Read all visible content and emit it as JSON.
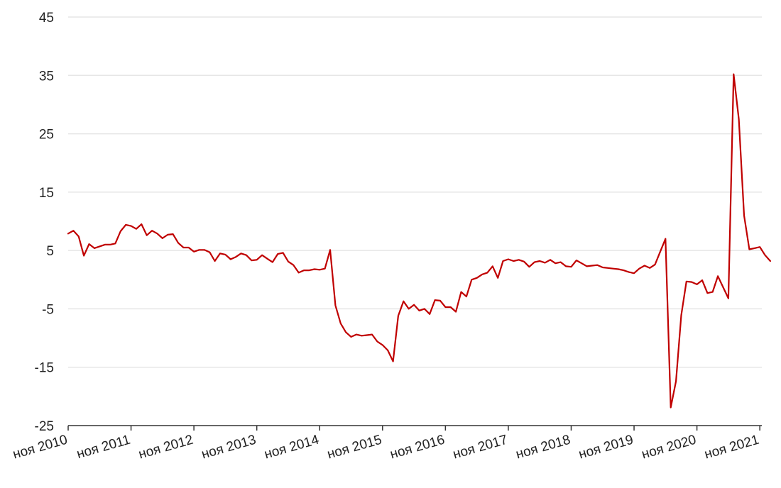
{
  "chart_data": {
    "type": "line",
    "title": "",
    "xlabel": "",
    "ylabel": "",
    "ylim": [
      -25,
      45
    ],
    "yticks": [
      -25,
      -15,
      -5,
      5,
      15,
      25,
      35,
      45
    ],
    "grid": true,
    "legend": "none",
    "colors": {
      "line": "#c00000",
      "grid": "#e6e6e6",
      "axis": "#333333"
    },
    "x_tick_labels": [
      "ноя 2010",
      "ноя 2011",
      "ноя 2012",
      "ноя 2013",
      "ноя 2014",
      "ноя 2015",
      "ноя 2016",
      "ноя 2017",
      "ноя 2018",
      "ноя 2019",
      "ноя 2020",
      "ноя 2021"
    ],
    "x_start_month": "2010-11",
    "series": [
      {
        "name": "",
        "x_step": "1 month",
        "values": [
          7.9,
          8.4,
          7.4,
          4.1,
          6.1,
          5.4,
          5.7,
          6.0,
          6.0,
          6.2,
          8.3,
          9.4,
          9.2,
          8.7,
          9.5,
          7.6,
          8.4,
          7.9,
          7.1,
          7.7,
          7.8,
          6.3,
          5.5,
          5.5,
          4.8,
          5.1,
          5.1,
          4.7,
          3.2,
          4.5,
          4.3,
          3.5,
          3.9,
          4.5,
          4.2,
          3.3,
          3.4,
          4.2,
          3.6,
          3.0,
          4.4,
          4.6,
          3.1,
          2.5,
          1.2,
          1.6,
          1.6,
          1.8,
          1.7,
          1.9,
          5.1,
          -4.4,
          -7.5,
          -9.0,
          -9.8,
          -9.4,
          -9.6,
          -9.5,
          -9.4,
          -10.6,
          -11.2,
          -12.1,
          -14.0,
          -6.2,
          -3.7,
          -5.0,
          -4.3,
          -5.3,
          -5.0,
          -5.9,
          -3.5,
          -3.6,
          -4.7,
          -4.7,
          -5.5,
          -2.1,
          -2.9,
          0.0,
          0.3,
          0.9,
          1.2,
          2.3,
          0.3,
          3.2,
          3.5,
          3.2,
          3.4,
          3.1,
          2.2,
          3.0,
          3.2,
          2.9,
          3.4,
          2.8,
          3.0,
          2.3,
          2.2,
          3.3,
          2.8,
          2.3,
          2.4,
          2.5,
          2.1,
          2.0,
          1.9,
          1.8,
          1.6,
          1.3,
          1.1,
          1.9,
          2.4,
          2.0,
          2.6,
          4.8,
          7.0,
          -21.9,
          -17.4,
          -6.1,
          -0.3,
          -0.4,
          -0.8,
          -0.1,
          -2.3,
          -2.1,
          0.6,
          -1.3,
          -3.2,
          35.2,
          27.5,
          11.0,
          5.2,
          5.4,
          5.6,
          4.2,
          3.2
        ]
      }
    ]
  }
}
